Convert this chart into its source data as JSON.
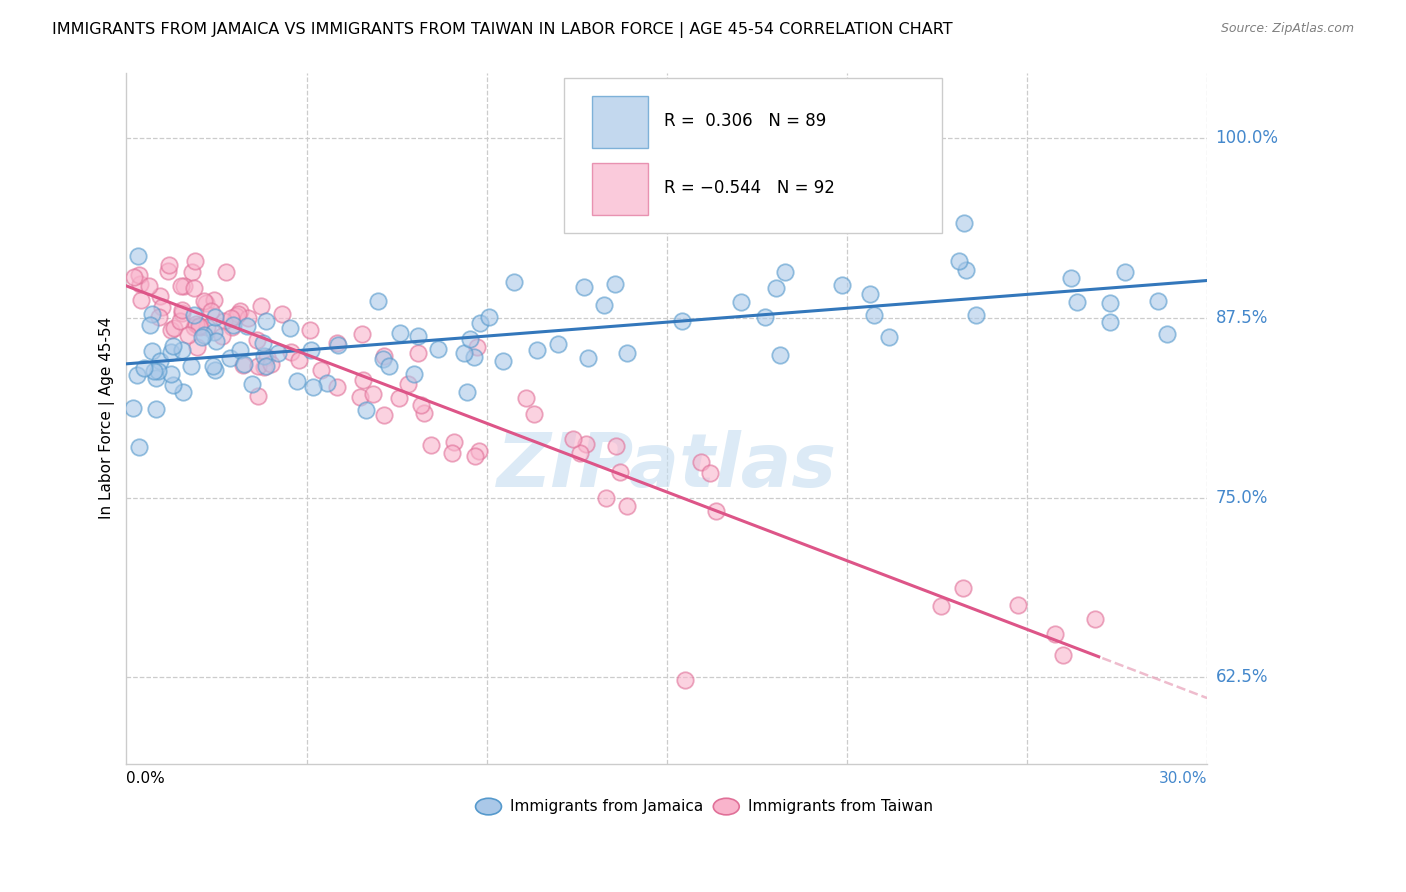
{
  "title": "IMMIGRANTS FROM JAMAICA VS IMMIGRANTS FROM TAIWAN IN LABOR FORCE | AGE 45-54 CORRELATION CHART",
  "source": "Source: ZipAtlas.com",
  "ylabel": "In Labor Force | Age 45-54",
  "yticks": [
    0.625,
    0.75,
    0.875,
    1.0
  ],
  "ytick_labels": [
    "62.5%",
    "75.0%",
    "87.5%",
    "100.0%"
  ],
  "xmin": 0.0,
  "xmax": 0.3,
  "ymin": 0.565,
  "ymax": 1.045,
  "legend_jamaica": "Immigrants from Jamaica",
  "legend_taiwan": "Immigrants from Taiwan",
  "R_jamaica": 0.306,
  "N_jamaica": 89,
  "R_taiwan": -0.544,
  "N_taiwan": 92,
  "jamaica_face_color": "#aac8e8",
  "jamaica_edge_color": "#5599cc",
  "taiwan_face_color": "#f9b4cc",
  "taiwan_edge_color": "#e07098",
  "jamaica_line_color": "#3377bb",
  "taiwan_line_color": "#dd5588",
  "taiwan_dash_color": "#e8a0b8",
  "watermark_text": "ZIPatlas",
  "watermark_color": "#c5ddf0",
  "background_color": "#ffffff",
  "grid_color": "#cccccc",
  "title_fontsize": 11.5,
  "source_fontsize": 9,
  "legend_fontsize": 11,
  "ylabel_fontsize": 11,
  "ytick_label_color": "#4488cc"
}
